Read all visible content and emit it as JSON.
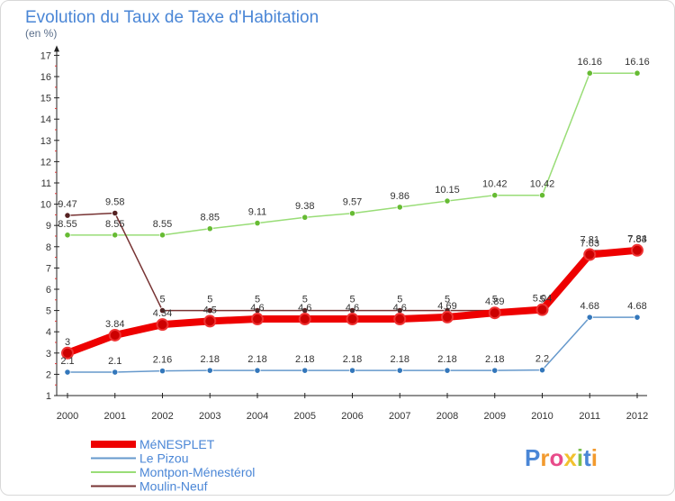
{
  "chart_data": {
    "type": "line",
    "title": "Evolution du Taux de Taxe d'Habitation",
    "subtitle": "(en %)",
    "x": [
      "2000",
      "2001",
      "2002",
      "2003",
      "2004",
      "2005",
      "2006",
      "2007",
      "2008",
      "2009",
      "2010",
      "2011",
      "2012"
    ],
    "ylim": [
      1,
      17
    ],
    "yticks": [
      1,
      2,
      3,
      4,
      5,
      6,
      7,
      8,
      9,
      10,
      11,
      12,
      13,
      14,
      15,
      16,
      17
    ],
    "grid": false,
    "legend_position": "bottom-left",
    "series": [
      {
        "name": "Montpon-Ménestérol",
        "color": "#99dd77",
        "marker": "#66bb33",
        "values": [
          8.55,
          8.55,
          8.55,
          8.85,
          9.11,
          9.38,
          9.57,
          9.86,
          10.15,
          10.42,
          10.42,
          16.16,
          16.16
        ],
        "labels": [
          "8.55",
          "8.55",
          "8.55",
          "8.85",
          "9.11",
          "9.38",
          "9.57",
          "9.86",
          "10.15",
          "10.42",
          "10.42",
          "16.16",
          "16.16"
        ]
      },
      {
        "name": "Moulin-Neuf",
        "color": "#773333",
        "marker": "#552222",
        "values": [
          9.47,
          9.58,
          5,
          5,
          5,
          5,
          5,
          5,
          5,
          5,
          5,
          7.81,
          7.84
        ],
        "labels": [
          "9.47",
          "9.58",
          "5",
          "5",
          "5",
          "5",
          "5",
          "5",
          "5",
          "5",
          "5",
          "7.81",
          "7.84"
        ]
      },
      {
        "name": "Le Pizou",
        "color": "#6699cc",
        "marker": "#3377bb",
        "values": [
          2.1,
          2.1,
          2.16,
          2.18,
          2.18,
          2.18,
          2.18,
          2.18,
          2.18,
          2.18,
          2.2,
          4.68,
          4.68
        ],
        "labels": [
          "2.1",
          "2.1",
          "2.16",
          "2.18",
          "2.18",
          "2.18",
          "2.18",
          "2.18",
          "2.18",
          "2.18",
          "2.2",
          "4.68",
          "4.68"
        ]
      },
      {
        "name": "MéNESPLET",
        "color": "#ee0000",
        "marker": "#cc0000",
        "values": [
          3,
          3.84,
          4.34,
          4.5,
          4.6,
          4.6,
          4.6,
          4.6,
          4.69,
          4.89,
          5.04,
          7.63,
          7.83
        ],
        "labels": [
          "3",
          "3.84",
          "4.34",
          "4.5",
          "4.6",
          "4.6",
          "4.6",
          "4.6",
          "4.69",
          "4.89",
          "5.04",
          "7.63",
          "7.83"
        ]
      }
    ],
    "legend_order": [
      "MéNESPLET",
      "Le Pizou",
      "Montpon-Ménestérol",
      "Moulin-Neuf"
    ]
  },
  "logo": {
    "text": "Proxiti",
    "letters": [
      "P",
      "r",
      "o",
      "x",
      "i",
      "t",
      "i"
    ],
    "colors": [
      "#4a86d6",
      "#f29a2e",
      "#e84b8a",
      "#f2c12e",
      "#7cc04f",
      "#4a86d6",
      "#f29a2e"
    ]
  }
}
